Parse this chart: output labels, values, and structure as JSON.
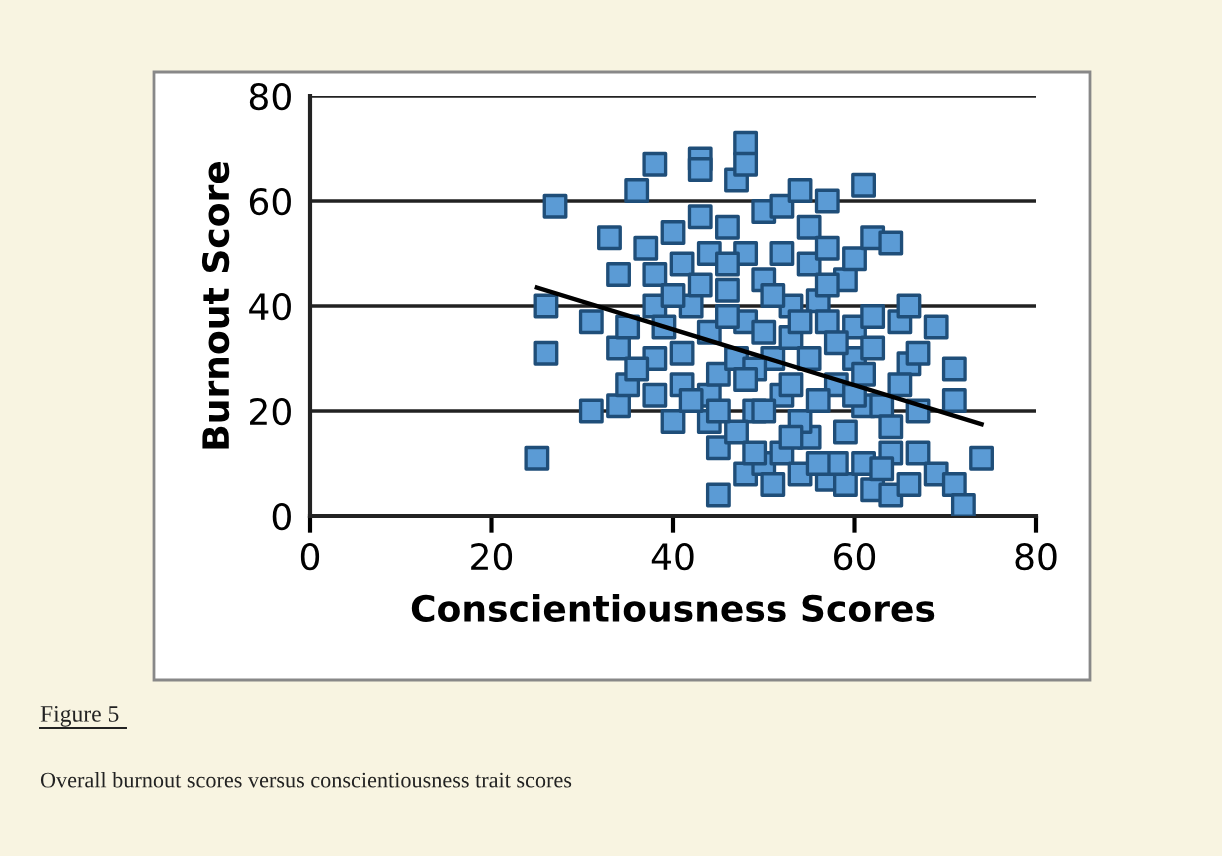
{
  "chart_data": {
    "type": "scatter",
    "xlabel": "Conscientiousness Scores",
    "ylabel": "Burnout Score",
    "xlim": [
      0,
      80
    ],
    "xticks": [
      0,
      20,
      40,
      60,
      80
    ],
    "ylim": [
      0,
      80
    ],
    "yticks": [
      0,
      20,
      40,
      60,
      80
    ],
    "grid": "y",
    "marker": "square",
    "annotations": [
      "Figure 5",
      "Overall burnout scores versus conscientiousness trait scores"
    ],
    "series": [
      {
        "color": "#5b9bd5",
        "x": [
          25,
          26,
          26,
          27,
          31,
          31,
          33,
          34,
          34,
          34,
          35,
          36,
          37,
          38,
          38,
          38,
          38,
          38,
          40,
          40,
          41,
          41,
          41,
          43,
          43,
          43,
          44,
          44,
          44,
          45,
          45,
          45,
          46,
          46,
          47,
          48,
          48,
          48,
          48,
          48,
          49,
          50,
          50,
          50,
          51,
          52,
          52,
          52,
          53,
          53,
          54,
          54,
          55,
          55,
          55,
          56,
          57,
          57,
          57,
          57,
          58,
          59,
          59,
          59,
          60,
          60,
          60,
          61,
          61,
          61,
          62,
          62,
          62,
          62,
          63,
          64,
          64,
          64,
          64,
          65,
          66,
          66,
          66,
          67,
          67,
          67,
          69,
          69,
          71,
          71,
          71,
          72,
          74,
          42,
          44,
          46,
          47,
          49,
          50,
          51,
          53,
          54,
          55,
          56,
          47,
          49,
          51,
          43,
          39,
          36,
          35,
          58,
          60,
          63,
          65,
          46,
          52,
          57,
          45,
          53,
          56,
          40,
          42,
          50,
          48,
          54,
          58,
          61
        ],
        "values": [
          11,
          40,
          31,
          59,
          20,
          37,
          53,
          21,
          32,
          46,
          25,
          62,
          51,
          67,
          46,
          23,
          40,
          30,
          18,
          54,
          25,
          31,
          48,
          57,
          68,
          66,
          18,
          23,
          50,
          4,
          13,
          27,
          55,
          43,
          64,
          71,
          67,
          37,
          8,
          50,
          20,
          58,
          45,
          10,
          30,
          59,
          23,
          12,
          40,
          34,
          62,
          8,
          55,
          48,
          15,
          41,
          60,
          51,
          37,
          7,
          25,
          45,
          16,
          6,
          49,
          36,
          30,
          63,
          10,
          21,
          53,
          38,
          32,
          5,
          21,
          52,
          17,
          12,
          4,
          37,
          40,
          29,
          6,
          31,
          20,
          12,
          36,
          8,
          28,
          22,
          6,
          2,
          11,
          40,
          35,
          38,
          30,
          28,
          35,
          42,
          25,
          18,
          30,
          22,
          16,
          12,
          6,
          44,
          36,
          28,
          36,
          10,
          23,
          9,
          25,
          48,
          50,
          44,
          20,
          15,
          10,
          42,
          22,
          20,
          26,
          37,
          33,
          27
        ]
      },
      {
        "type": "line",
        "color": "#000000",
        "marker": "none",
        "x": [
          25,
          74
        ],
        "values": [
          43.5,
          17.5
        ]
      }
    ]
  }
}
